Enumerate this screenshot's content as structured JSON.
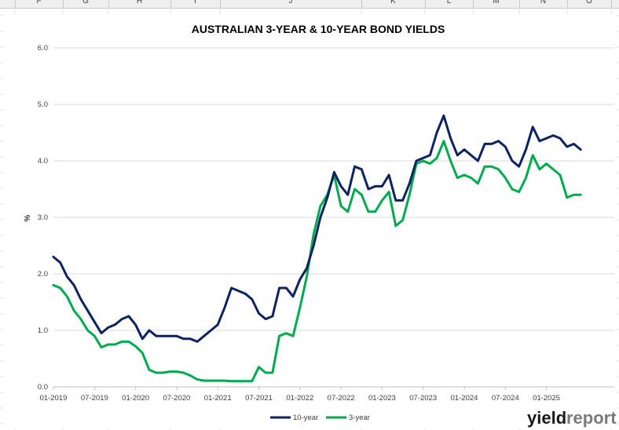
{
  "spreadsheet": {
    "columns": [
      "F",
      "G",
      "H",
      "I",
      "J",
      "K",
      "L",
      "M",
      "N",
      "O"
    ]
  },
  "chart_data": {
    "type": "line",
    "title": "AUSTRALIAN 3-YEAR & 10-YEAR BOND YIELDS",
    "xlabel": "",
    "ylabel": "%",
    "ylim": [
      0,
      6
    ],
    "yticks": [
      "0.0",
      "1.0",
      "2.0",
      "3.0",
      "4.0",
      "5.0",
      "6.0"
    ],
    "xticks": [
      "01-2019",
      "07-2019",
      "01-2020",
      "07-2020",
      "01-2021",
      "07-2021",
      "01-2022",
      "07-2022",
      "01-2023",
      "07-2023",
      "01-2024",
      "07-2024",
      "01-2025"
    ],
    "grid": "horizontal",
    "legend_position": "bottom",
    "series": [
      {
        "name": "10-year",
        "color": "#0d2260",
        "x": [
          "2019-01",
          "2019-02",
          "2019-03",
          "2019-04",
          "2019-05",
          "2019-06",
          "2019-07",
          "2019-08",
          "2019-09",
          "2019-10",
          "2019-11",
          "2019-12",
          "2020-01",
          "2020-02",
          "2020-03",
          "2020-04",
          "2020-05",
          "2020-06",
          "2020-07",
          "2020-08",
          "2020-09",
          "2020-10",
          "2020-11",
          "2020-12",
          "2021-01",
          "2021-02",
          "2021-03",
          "2021-04",
          "2021-05",
          "2021-06",
          "2021-07",
          "2021-08",
          "2021-09",
          "2021-10",
          "2021-11",
          "2021-12",
          "2022-01",
          "2022-02",
          "2022-03",
          "2022-04",
          "2022-05",
          "2022-06",
          "2022-07",
          "2022-08",
          "2022-09",
          "2022-10",
          "2022-11",
          "2022-12",
          "2023-01",
          "2023-02",
          "2023-03",
          "2023-04",
          "2023-05",
          "2023-06",
          "2023-07",
          "2023-08",
          "2023-09",
          "2023-10",
          "2023-11",
          "2023-12",
          "2024-01",
          "2024-02",
          "2024-03",
          "2024-04",
          "2024-05",
          "2024-06",
          "2024-07",
          "2024-08",
          "2024-09",
          "2024-10",
          "2024-11",
          "2024-12",
          "2025-01",
          "2025-02",
          "2025-03",
          "2025-04",
          "2025-05",
          "2025-06"
        ],
        "y": [
          2.3,
          2.2,
          1.95,
          1.8,
          1.55,
          1.35,
          1.15,
          0.95,
          1.05,
          1.1,
          1.2,
          1.25,
          1.1,
          0.85,
          1.0,
          0.9,
          0.9,
          0.9,
          0.9,
          0.85,
          0.85,
          0.8,
          0.9,
          1.0,
          1.1,
          1.4,
          1.75,
          1.7,
          1.65,
          1.55,
          1.3,
          1.2,
          1.25,
          1.75,
          1.75,
          1.6,
          1.9,
          2.1,
          2.5,
          3.0,
          3.35,
          3.8,
          3.55,
          3.4,
          3.9,
          3.85,
          3.5,
          3.55,
          3.55,
          3.75,
          3.3,
          3.3,
          3.6,
          4.0,
          4.05,
          4.1,
          4.5,
          4.8,
          4.4,
          4.1,
          4.2,
          4.1,
          4.0,
          4.3,
          4.3,
          4.35,
          4.25,
          4.0,
          3.9,
          4.2,
          4.6,
          4.35,
          4.4,
          4.45,
          4.4,
          4.25,
          4.3,
          4.2
        ]
      },
      {
        "name": "3-year",
        "color": "#00aa4f",
        "x": [
          "2019-01",
          "2019-02",
          "2019-03",
          "2019-04",
          "2019-05",
          "2019-06",
          "2019-07",
          "2019-08",
          "2019-09",
          "2019-10",
          "2019-11",
          "2019-12",
          "2020-01",
          "2020-02",
          "2020-03",
          "2020-04",
          "2020-05",
          "2020-06",
          "2020-07",
          "2020-08",
          "2020-09",
          "2020-10",
          "2020-11",
          "2020-12",
          "2021-01",
          "2021-02",
          "2021-03",
          "2021-04",
          "2021-05",
          "2021-06",
          "2021-07",
          "2021-08",
          "2021-09",
          "2021-10",
          "2021-11",
          "2021-12",
          "2022-01",
          "2022-02",
          "2022-03",
          "2022-04",
          "2022-05",
          "2022-06",
          "2022-07",
          "2022-08",
          "2022-09",
          "2022-10",
          "2022-11",
          "2022-12",
          "2023-01",
          "2023-02",
          "2023-03",
          "2023-04",
          "2023-05",
          "2023-06",
          "2023-07",
          "2023-08",
          "2023-09",
          "2023-10",
          "2023-11",
          "2023-12",
          "2024-01",
          "2024-02",
          "2024-03",
          "2024-04",
          "2024-05",
          "2024-06",
          "2024-07",
          "2024-08",
          "2024-09",
          "2024-10",
          "2024-11",
          "2024-12",
          "2025-01",
          "2025-02",
          "2025-03",
          "2025-04",
          "2025-05",
          "2025-06"
        ],
        "y": [
          1.8,
          1.75,
          1.6,
          1.35,
          1.2,
          1.0,
          0.9,
          0.7,
          0.75,
          0.75,
          0.8,
          0.8,
          0.72,
          0.6,
          0.3,
          0.25,
          0.25,
          0.27,
          0.27,
          0.25,
          0.2,
          0.13,
          0.11,
          0.11,
          0.11,
          0.11,
          0.1,
          0.1,
          0.1,
          0.1,
          0.35,
          0.25,
          0.25,
          0.9,
          0.95,
          0.9,
          1.4,
          1.95,
          2.7,
          3.2,
          3.4,
          3.75,
          3.2,
          3.1,
          3.5,
          3.4,
          3.1,
          3.1,
          3.3,
          3.45,
          2.85,
          2.95,
          3.4,
          3.95,
          4.0,
          3.95,
          4.05,
          4.35,
          4.0,
          3.7,
          3.75,
          3.7,
          3.6,
          3.9,
          3.9,
          3.85,
          3.7,
          3.5,
          3.45,
          3.7,
          4.1,
          3.85,
          3.95,
          3.85,
          3.75,
          3.35,
          3.4,
          3.4
        ]
      }
    ]
  },
  "logo": {
    "part1": "yield",
    "part2": "report"
  }
}
